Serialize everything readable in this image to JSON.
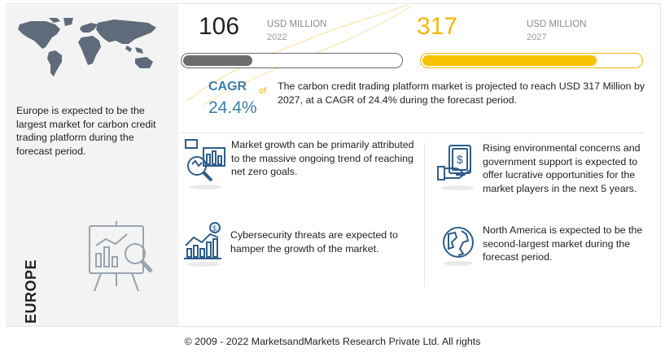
{
  "stats": {
    "value_2022": "106",
    "unit_2022": "USD MILLION",
    "year_2022": "2022",
    "value_2027": "317",
    "unit_2027": "USD MILLION",
    "year_2027": "2027",
    "bar_fill_2022": 0.33,
    "bar_fill_2027": 0.8
  },
  "cagr": {
    "label": "CAGR",
    "connector": "of",
    "value": "24.4%",
    "description": "The carbon credit trading platform market is projected to reach USD 317 Million by 2027, at a CAGR of 24.4% during the forecast period."
  },
  "left_panel": {
    "text": "Europe is expected to be the largest market for carbon credit trading platform during the forecast period.",
    "region": "EUROPE"
  },
  "insights": [
    {
      "icon": "analytics-magnifier-icon",
      "text": "Market growth can be primarily attributed to the massive ongoing trend of reaching net zero goals."
    },
    {
      "icon": "money-hand-icon",
      "text": "Rising environmental concerns and government support is expected to offer lucrative opportunities for the market players in the next 5 years."
    },
    {
      "icon": "growth-chart-dollar-icon",
      "text": "Cybersecurity threats are expected to hamper the growth of the market."
    },
    {
      "icon": "globe-icon",
      "text": "North America is expected to be the second-largest market during the forecast period."
    }
  ],
  "footer": "© 2009 - 2022 MarketsandMarkets Research Private Ltd. All rights",
  "colors": {
    "accent_yellow": "#f7c300",
    "accent_blue": "#3c7fa8",
    "bar_gray": "#6c6c6c",
    "icon_blue": "#2f5d8a"
  }
}
